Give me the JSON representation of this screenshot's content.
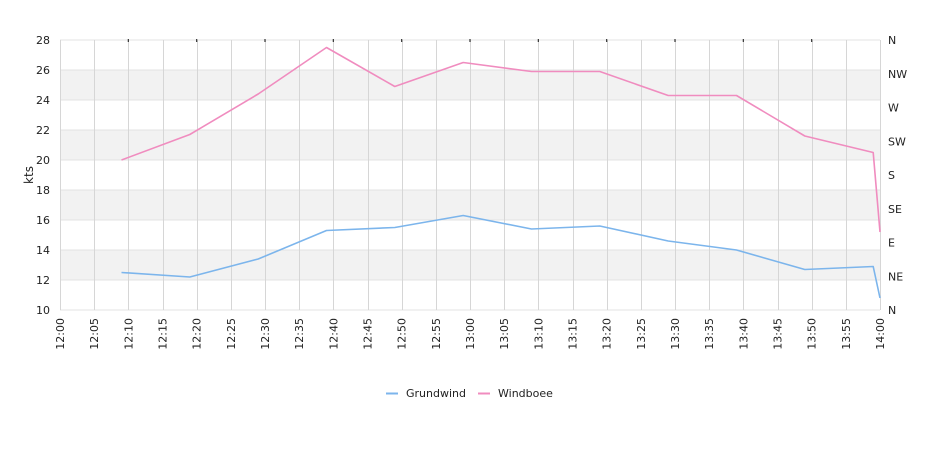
{
  "chart_data": {
    "type": "line",
    "ylabel": "kts",
    "ylim": [
      10,
      28
    ],
    "yticks": [
      10,
      12,
      14,
      16,
      18,
      20,
      22,
      24,
      26,
      28
    ],
    "xlim": [
      "12:00",
      "14:00"
    ],
    "xticks": [
      "12:00",
      "12:05",
      "12:10",
      "12:15",
      "12:20",
      "12:25",
      "12:30",
      "12:35",
      "12:40",
      "12:45",
      "12:50",
      "12:55",
      "13:00",
      "13:05",
      "13:10",
      "13:15",
      "13:20",
      "13:25",
      "13:30",
      "13:35",
      "13:40",
      "13:45",
      "13:50",
      "13:55",
      "14:00"
    ],
    "y2ticks": [
      "N",
      "NE",
      "E",
      "SE",
      "S",
      "SW",
      "W",
      "NW",
      "N"
    ],
    "grid": true,
    "legend_position": "bottom",
    "series": [
      {
        "name": "Grundwind",
        "color": "#7cb5ec",
        "points": [
          [
            "12:09",
            12.5
          ],
          [
            "12:19",
            12.2
          ],
          [
            "12:29",
            13.4
          ],
          [
            "12:39",
            15.3
          ],
          [
            "12:49",
            15.5
          ],
          [
            "12:59",
            16.3
          ],
          [
            "13:09",
            15.4
          ],
          [
            "13:19",
            15.6
          ],
          [
            "13:29",
            14.6
          ],
          [
            "13:39",
            14.0
          ],
          [
            "13:49",
            12.7
          ],
          [
            "13:59",
            12.9
          ],
          [
            "14:00",
            10.8
          ]
        ]
      },
      {
        "name": "Windboee",
        "color": "#f08cbf",
        "points": [
          [
            "12:09",
            20.0
          ],
          [
            "12:19",
            21.7
          ],
          [
            "12:29",
            24.4
          ],
          [
            "12:39",
            27.5
          ],
          [
            "12:49",
            24.9
          ],
          [
            "12:59",
            26.5
          ],
          [
            "13:09",
            25.9
          ],
          [
            "13:19",
            25.9
          ],
          [
            "13:29",
            24.3
          ],
          [
            "13:39",
            24.3
          ],
          [
            "13:49",
            21.6
          ],
          [
            "13:59",
            20.5
          ],
          [
            "14:00",
            15.2
          ]
        ]
      }
    ]
  }
}
